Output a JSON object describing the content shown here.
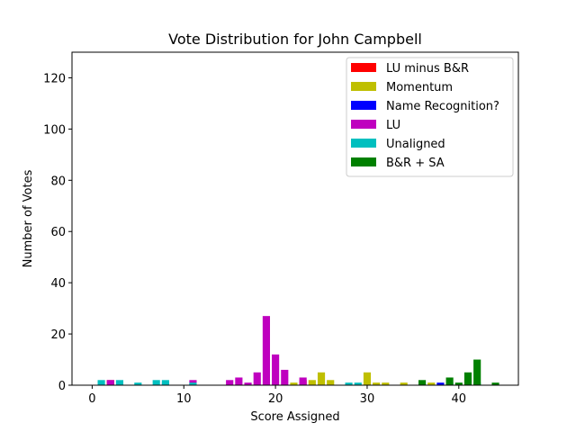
{
  "chart_data": {
    "type": "bar",
    "title": "Vote Distribution for John Campbell",
    "xlabel": "Score Assigned",
    "ylabel": "Number of Votes",
    "xlim": [
      -2.2,
      46.5
    ],
    "ylim": [
      0,
      130
    ],
    "xticks": [
      0,
      10,
      20,
      30,
      40
    ],
    "yticks": [
      0,
      20,
      40,
      60,
      80,
      100,
      120
    ],
    "grid": false,
    "legend_position": "top-right",
    "series": [
      {
        "name": "LU minus B&R",
        "color": "#ff0000",
        "points": [
          {
            "x": 2,
            "y": 2
          },
          {
            "x": 23,
            "y": 2
          }
        ]
      },
      {
        "name": "Momentum",
        "color": "#bfbf00",
        "points": [
          {
            "x": 2,
            "y": 1
          },
          {
            "x": 22,
            "y": 1
          },
          {
            "x": 24,
            "y": 2
          },
          {
            "x": 25,
            "y": 5
          },
          {
            "x": 26,
            "y": 2
          },
          {
            "x": 30,
            "y": 5
          },
          {
            "x": 31,
            "y": 1
          },
          {
            "x": 32,
            "y": 1
          },
          {
            "x": 34,
            "y": 1
          },
          {
            "x": 37,
            "y": 1
          },
          {
            "x": 41,
            "y": 2
          }
        ]
      },
      {
        "name": "Name Recognition?",
        "color": "#0000ff",
        "points": [
          {
            "x": 38,
            "y": 1
          }
        ]
      },
      {
        "name": "LU",
        "color": "#bf00bf",
        "points": [
          {
            "x": 2,
            "y": 2
          },
          {
            "x": 8,
            "y": 1
          },
          {
            "x": 11,
            "y": 2
          },
          {
            "x": 15,
            "y": 2
          },
          {
            "x": 16,
            "y": 3
          },
          {
            "x": 17,
            "y": 1
          },
          {
            "x": 18,
            "y": 5
          },
          {
            "x": 19,
            "y": 27
          },
          {
            "x": 20,
            "y": 12
          },
          {
            "x": 21,
            "y": 6
          },
          {
            "x": 23,
            "y": 3
          }
        ]
      },
      {
        "name": "Unaligned",
        "color": "#00bfbf",
        "points": [
          {
            "x": 1,
            "y": 2
          },
          {
            "x": 3,
            "y": 2
          },
          {
            "x": 5,
            "y": 1
          },
          {
            "x": 7,
            "y": 2
          },
          {
            "x": 8,
            "y": 2
          },
          {
            "x": 11,
            "y": 1
          },
          {
            "x": 28,
            "y": 1
          },
          {
            "x": 29,
            "y": 1
          },
          {
            "x": 36,
            "y": 1
          },
          {
            "x": 39,
            "y": 1
          },
          {
            "x": 42,
            "y": 1
          }
        ]
      },
      {
        "name": "B&R + SA",
        "color": "#008000",
        "points": [
          {
            "x": 36,
            "y": 2
          },
          {
            "x": 39,
            "y": 3
          },
          {
            "x": 40,
            "y": 1
          },
          {
            "x": 41,
            "y": 5
          },
          {
            "x": 42,
            "y": 10
          },
          {
            "x": 44,
            "y": 1
          }
        ]
      }
    ]
  }
}
